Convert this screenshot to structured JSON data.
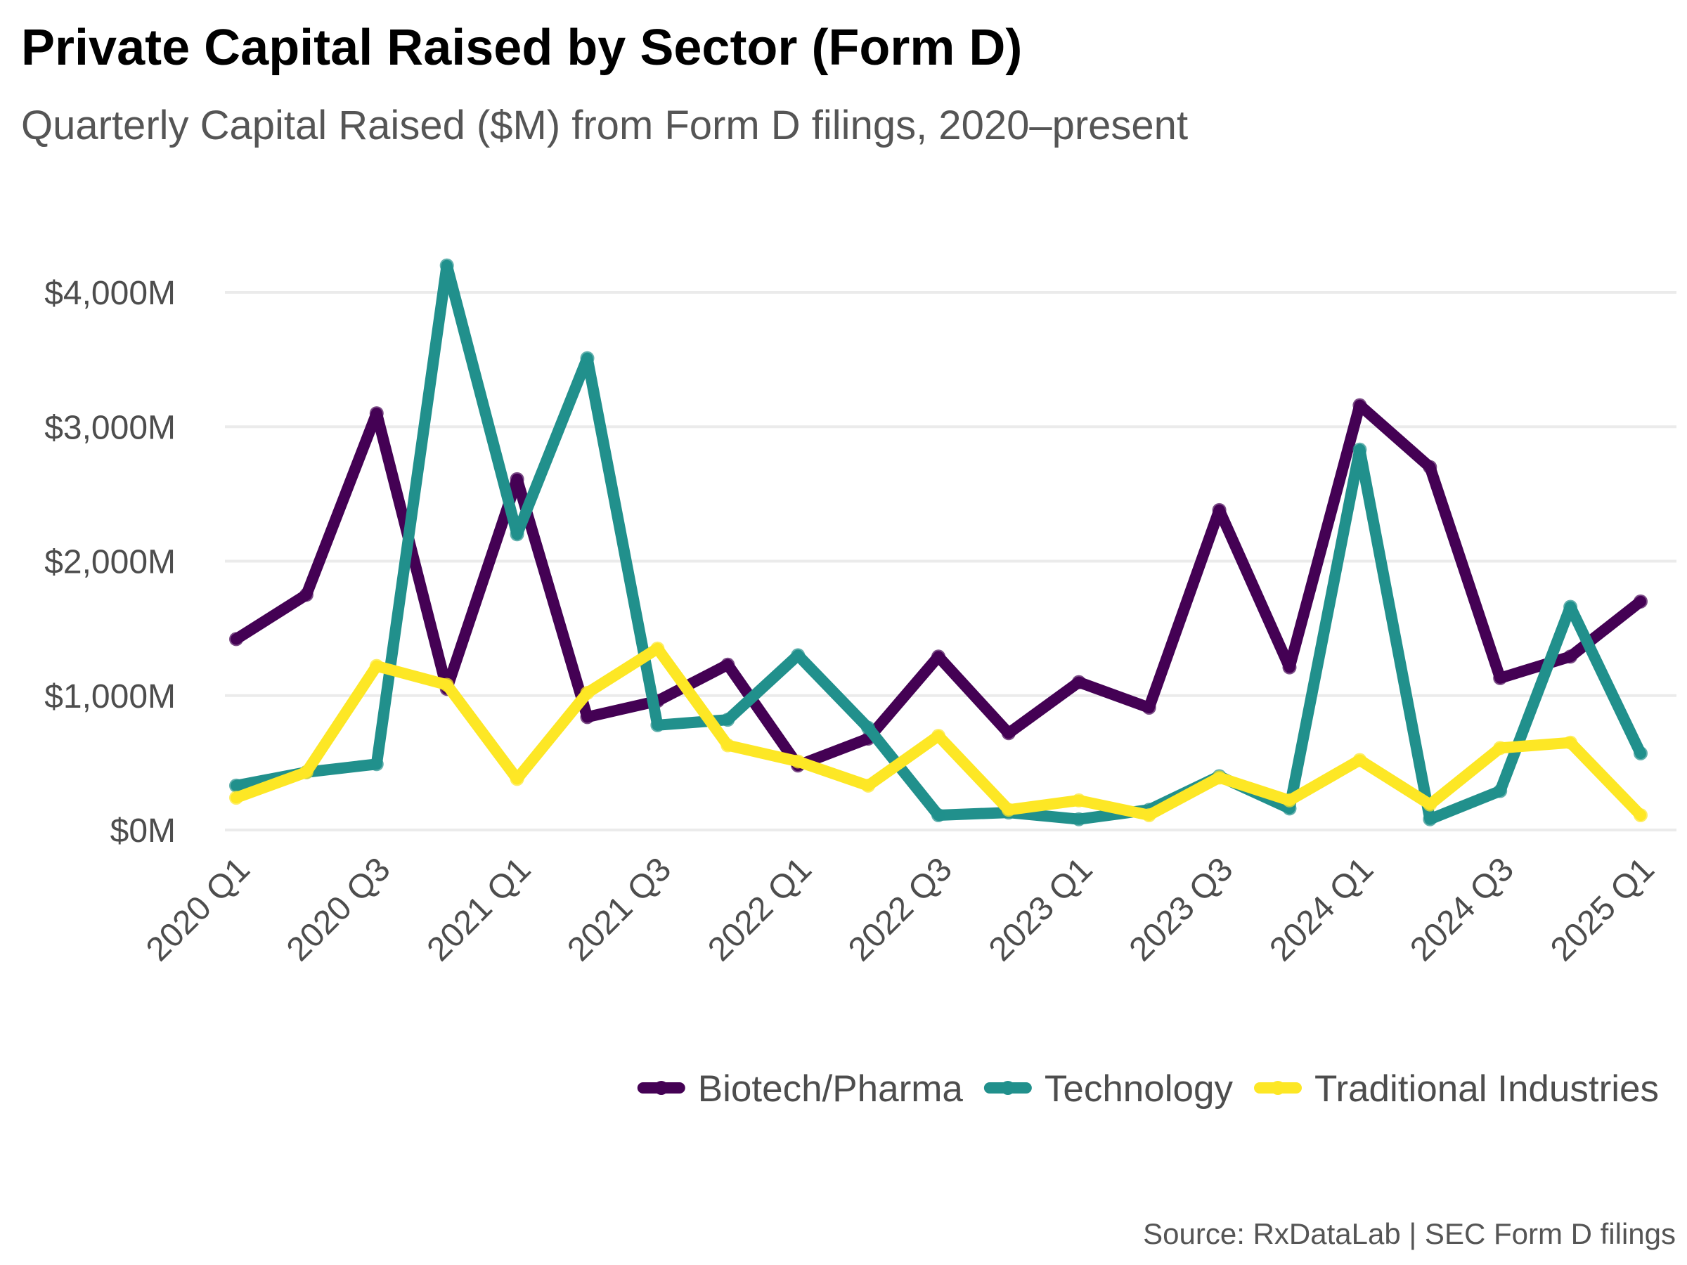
{
  "chart_data": {
    "type": "line",
    "title": "Private Capital Raised by Sector (Form D)",
    "subtitle": "Quarterly Capital Raised ($M) from Form D filings, 2020–present",
    "caption": "Source: RxDataLab | SEC Form D filings",
    "xlabel": "",
    "ylabel": "",
    "ylim": [
      -80,
      4300
    ],
    "yticks": [
      {
        "value": 0,
        "label": "$0M"
      },
      {
        "value": 1000,
        "label": "$1,000M"
      },
      {
        "value": 2000,
        "label": "$2,000M"
      },
      {
        "value": 3000,
        "label": "$3,000M"
      },
      {
        "value": 4000,
        "label": "$4,000M"
      }
    ],
    "categories": [
      "2020 Q1",
      "2020 Q2",
      "2020 Q3",
      "2020 Q4",
      "2021 Q1",
      "2021 Q2",
      "2021 Q3",
      "2021 Q4",
      "2022 Q1",
      "2022 Q2",
      "2022 Q3",
      "2022 Q4",
      "2023 Q1",
      "2023 Q2",
      "2023 Q3",
      "2023 Q4",
      "2024 Q1",
      "2024 Q2",
      "2024 Q3",
      "2024 Q4",
      "2025 Q1"
    ],
    "x_tick_labels": [
      {
        "index": 0,
        "label": "2020 Q1"
      },
      {
        "index": 2,
        "label": "2020 Q3"
      },
      {
        "index": 4,
        "label": "2021 Q1"
      },
      {
        "index": 6,
        "label": "2021 Q3"
      },
      {
        "index": 8,
        "label": "2022 Q1"
      },
      {
        "index": 10,
        "label": "2022 Q3"
      },
      {
        "index": 12,
        "label": "2023 Q1"
      },
      {
        "index": 14,
        "label": "2023 Q3"
      },
      {
        "index": 16,
        "label": "2024 Q1"
      },
      {
        "index": 18,
        "label": "2024 Q3"
      },
      {
        "index": 20,
        "label": "2025 Q1"
      }
    ],
    "series": [
      {
        "name": "Biotech/Pharma",
        "color": "#440154",
        "values": [
          1420,
          1750,
          3100,
          1050,
          2610,
          840,
          960,
          1230,
          480,
          680,
          1290,
          720,
          1100,
          910,
          2380,
          1210,
          3160,
          2700,
          1130,
          1290,
          1700
        ]
      },
      {
        "name": "Technology",
        "color": "#21908C",
        "values": [
          330,
          430,
          490,
          4200,
          2200,
          3510,
          780,
          820,
          1300,
          760,
          110,
          130,
          80,
          150,
          400,
          160,
          2830,
          80,
          290,
          1660,
          570
        ]
      },
      {
        "name": "Traditional Industries",
        "color": "#FDE725",
        "values": [
          240,
          430,
          1220,
          1080,
          380,
          1020,
          1350,
          630,
          510,
          330,
          700,
          150,
          220,
          110,
          390,
          220,
          520,
          190,
          610,
          650,
          110
        ]
      }
    ],
    "legend": {
      "position": "bottom-right"
    },
    "grid": true
  }
}
